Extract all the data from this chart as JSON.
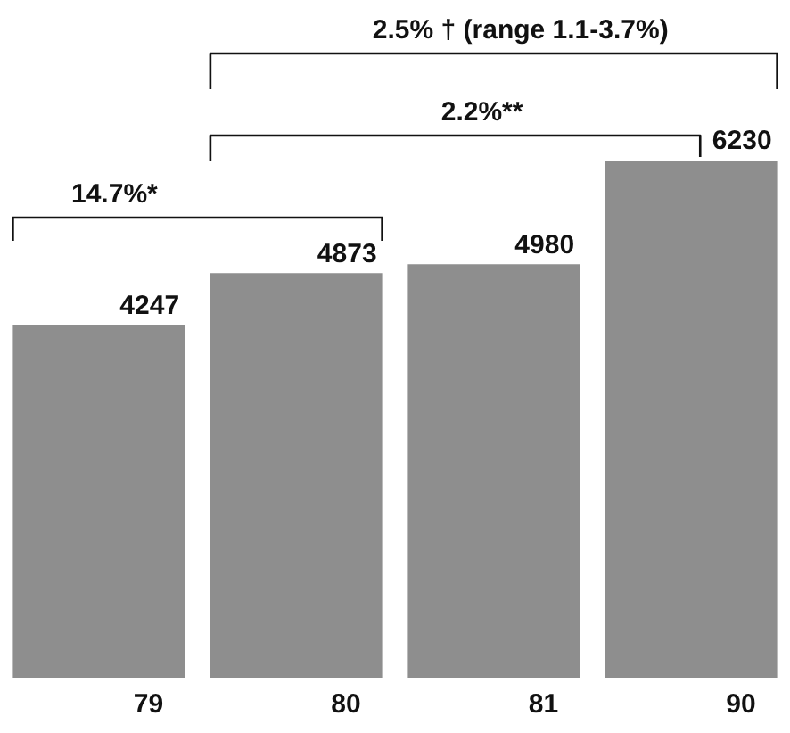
{
  "chart_data": {
    "type": "bar",
    "categories": [
      "79",
      "80",
      "81",
      "90"
    ],
    "values": [
      4247,
      4873,
      4980,
      6230
    ],
    "color": "#8e8e8e",
    "data_labels": true,
    "legend": false,
    "annotations": [
      "14.7%*",
      "2.2%**",
      "2.5% † (range 1.1-3.7%)"
    ]
  }
}
